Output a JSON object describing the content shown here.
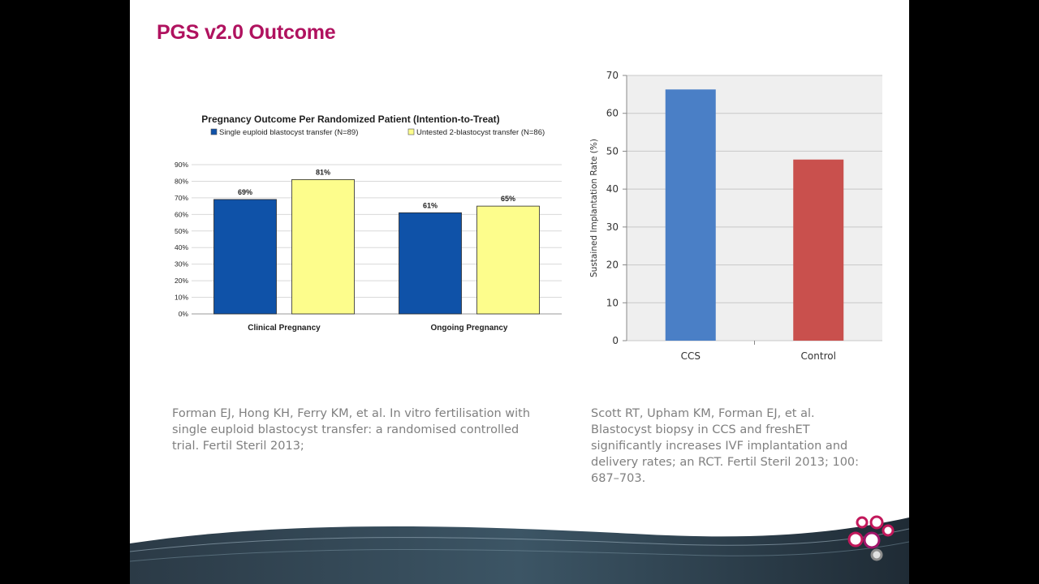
{
  "slide": {
    "title": "PGS v2.0 Outcome"
  },
  "references": {
    "left_lines": [
      "Forman EJ, Hong KH, Ferry KM, et al. In vitro fertilisation with",
      "single euploid blastocyst transfer: a randomised controlled",
      "trial. Fertil Steril 2013;"
    ],
    "right_lines": [
      "Scott RT, Upham KM, Forman EJ, et al.",
      "Blastocyst biopsy in CCS and freshET",
      "significantly increases IVF implantation and",
      "delivery rates; an RCT. Fertil Steril 2013; 100:",
      "687–703."
    ]
  },
  "colors": {
    "title": "#b0125f",
    "series_blue": "#0f52a8",
    "series_yellow": "#fdfd8c",
    "ccs": "#4a7fc6",
    "control": "#c9504d",
    "reference_text": "#808080"
  },
  "chart_data": [
    {
      "type": "bar",
      "title": "Pregnancy Outcome Per Randomized Patient (Intention-to-Treat)",
      "categories": [
        "Clinical Pregnancy",
        "Ongoing Pregnancy"
      ],
      "series": [
        {
          "name": "Single euploid blastocyst transfer (N=89)",
          "values": [
            69,
            61
          ],
          "labels": [
            "69%",
            "61%"
          ],
          "color": "#0f52a8"
        },
        {
          "name": "Untested 2-blastocyst transfer (N=86)",
          "values": [
            81,
            65
          ],
          "labels": [
            "81%",
            "65%"
          ],
          "color": "#fdfd8c"
        }
      ],
      "yticks": [
        "0%",
        "10%",
        "20%",
        "30%",
        "40%",
        "50%",
        "60%",
        "70%",
        "80%",
        "90%"
      ],
      "ylim": [
        0,
        90
      ],
      "grid": true,
      "legend": "top"
    },
    {
      "type": "bar",
      "ylabel": "Sustained Implantation Rate (%)",
      "categories": [
        "CCS",
        "Control"
      ],
      "values": [
        66.3,
        47.8
      ],
      "colors": [
        "#4a7fc6",
        "#c9504d"
      ],
      "yticks": [
        "0",
        "10",
        "20",
        "30",
        "40",
        "50",
        "60",
        "70"
      ],
      "ylim": [
        0,
        70
      ],
      "grid": true
    }
  ]
}
